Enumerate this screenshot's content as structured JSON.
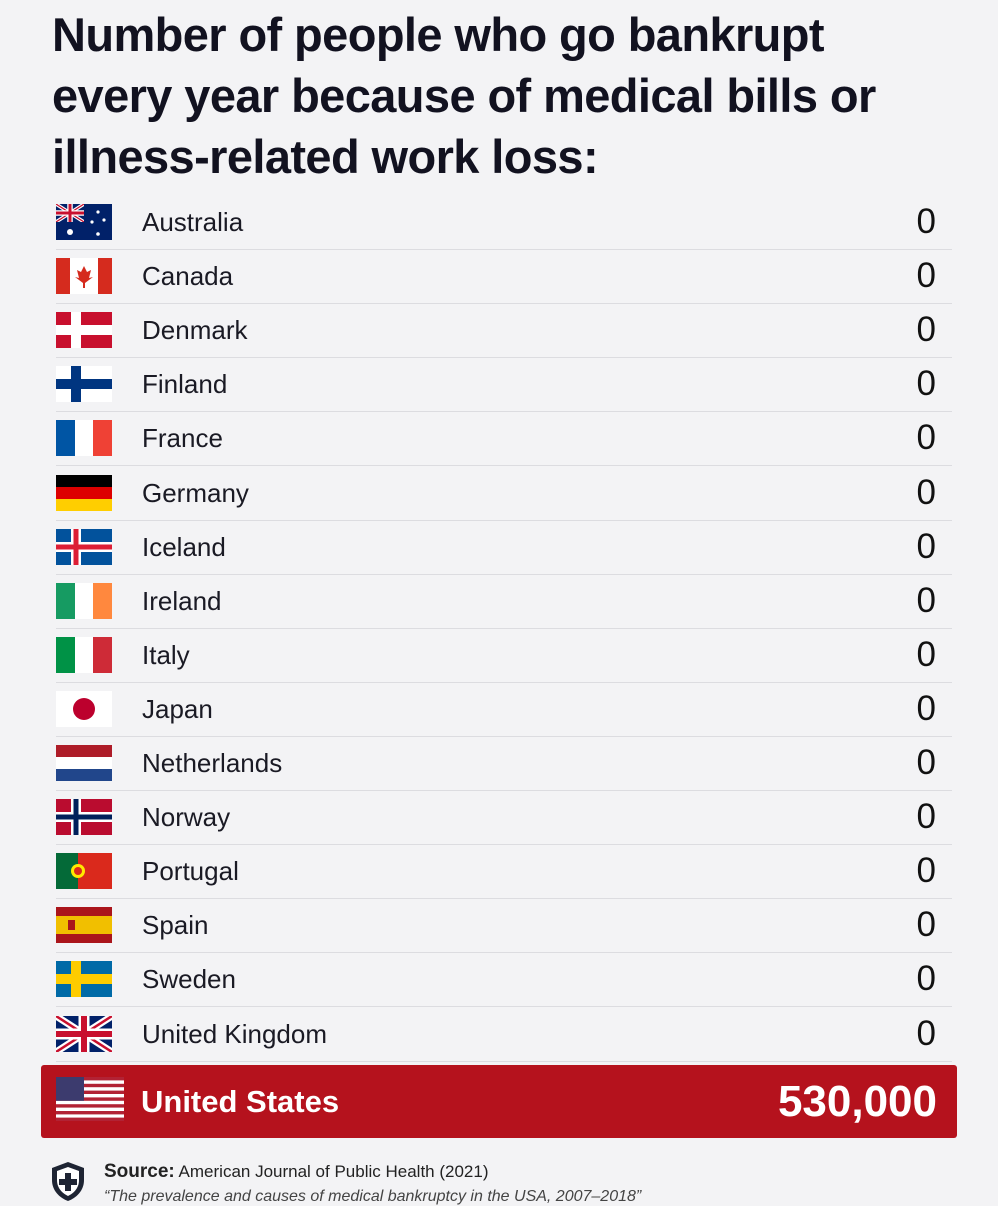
{
  "title": "Number of people who go bankrupt every year because of medical bills or illness-related work loss:",
  "rows": [
    {
      "country": "Australia",
      "value": 0
    },
    {
      "country": "Canada",
      "value": 0
    },
    {
      "country": "Denmark",
      "value": 0
    },
    {
      "country": "Finland",
      "value": 0
    },
    {
      "country": "France",
      "value": 0
    },
    {
      "country": "Germany",
      "value": 0
    },
    {
      "country": "Iceland",
      "value": 0
    },
    {
      "country": "Ireland",
      "value": 0
    },
    {
      "country": "Italy",
      "value": 0
    },
    {
      "country": "Japan",
      "value": 0
    },
    {
      "country": "Netherlands",
      "value": 0
    },
    {
      "country": "Norway",
      "value": 0
    },
    {
      "country": "Portugal",
      "value": 0
    },
    {
      "country": "Spain",
      "value": 0
    },
    {
      "country": "Sweden",
      "value": 0
    },
    {
      "country": "United Kingdom",
      "value": 0
    }
  ],
  "highlight": {
    "country": "United States",
    "value": "530,000"
  },
  "source": {
    "label": "Source:",
    "text": "American Journal of Public Health (2021)",
    "citation": "“The prevalence and causes of medical bankruptcy in the USA, 2007–2018”"
  }
}
